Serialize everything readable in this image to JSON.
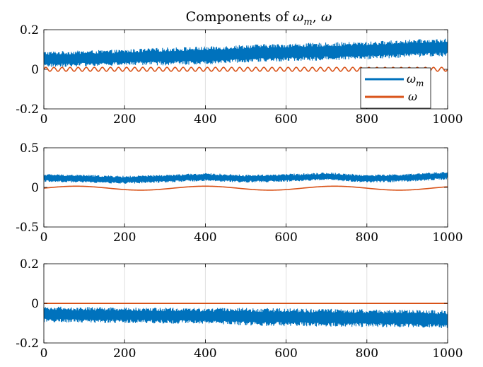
{
  "chart_data": {
    "type": "line",
    "title": "Components of ωm, ω",
    "title_parts": {
      "prefix": "Components of ",
      "omega": "ω",
      "sub_m": "m",
      "sep": ", "
    },
    "colors": {
      "omega_m": "#0072BD",
      "omega": "#D95319"
    },
    "grid": "x-only",
    "legend": {
      "placement": "right-inside (top panel)",
      "entries": [
        {
          "symbol": "ω",
          "subscript": "m",
          "series": "omega_m"
        },
        {
          "symbol": "ω",
          "subscript": "",
          "series": "omega"
        }
      ]
    },
    "panels": [
      {
        "xlim": [
          0,
          1000
        ],
        "ylim": [
          -0.2,
          0.2
        ],
        "xticks": [
          0,
          200,
          400,
          600,
          800,
          1000
        ],
        "xtick_labels": [
          "0",
          "200",
          "400",
          "600",
          "800",
          "1000"
        ],
        "yticks": [
          0.2,
          0,
          -0.2
        ],
        "ytick_labels": [
          "0.2",
          "0",
          "-0.2"
        ],
        "series": [
          {
            "key": "omega_m",
            "name": "ωm",
            "style": "noisy-band",
            "x": [
              0,
              100,
              200,
              300,
              400,
              500,
              600,
              700,
              800,
              900,
              1000
            ],
            "mean": [
              0.05,
              0.055,
              0.06,
              0.065,
              0.07,
              0.08,
              0.085,
              0.09,
              0.095,
              0.105,
              0.11
            ],
            "half_width": [
              0.04,
              0.04,
              0.04,
              0.045,
              0.045,
              0.045,
              0.045,
              0.045,
              0.045,
              0.045,
              0.045
            ]
          },
          {
            "key": "omega",
            "name": "ω",
            "style": "oscillation",
            "x": [
              0,
              1000
            ],
            "mean": [
              0,
              0
            ],
            "amplitude": 0.01,
            "period": 20
          }
        ]
      },
      {
        "xlim": [
          0,
          1000
        ],
        "ylim": [
          -0.5,
          0.5
        ],
        "xticks": [
          0,
          200,
          400,
          600,
          800,
          1000
        ],
        "xtick_labels": [
          "0",
          "200",
          "400",
          "600",
          "800",
          "1000"
        ],
        "yticks": [
          0.5,
          0,
          -0.5
        ],
        "ytick_labels": [
          "0.5",
          "0",
          "-0.5"
        ],
        "series": [
          {
            "key": "omega_m",
            "name": "ωm",
            "style": "noisy-band",
            "x": [
              0,
              100,
              200,
              300,
              400,
              500,
              600,
              700,
              800,
              900,
              1000
            ],
            "mean": [
              0.12,
              0.11,
              0.095,
              0.11,
              0.13,
              0.11,
              0.12,
              0.14,
              0.11,
              0.12,
              0.15
            ],
            "half_width": [
              0.05,
              0.05,
              0.05,
              0.05,
              0.05,
              0.05,
              0.05,
              0.05,
              0.05,
              0.05,
              0.05
            ]
          },
          {
            "key": "omega",
            "name": "ω",
            "style": "smooth-wave",
            "x": [
              0,
              1000
            ],
            "mean": [
              -0.01,
              -0.01
            ],
            "amplitude": 0.025,
            "period": 320
          }
        ]
      },
      {
        "xlim": [
          0,
          1000
        ],
        "ylim": [
          -0.2,
          0.2
        ],
        "xticks": [
          0,
          200,
          400,
          600,
          800,
          1000
        ],
        "xtick_labels": [
          "0",
          "200",
          "400",
          "600",
          "800",
          "1000"
        ],
        "yticks": [
          0.2,
          0,
          -0.2
        ],
        "ytick_labels": [
          "0.2",
          "0",
          "-0.2"
        ],
        "series": [
          {
            "key": "omega",
            "name": "ω",
            "style": "flat",
            "x": [
              0,
              1000
            ],
            "mean": [
              0,
              0
            ]
          },
          {
            "key": "omega_m",
            "name": "ωm",
            "style": "noisy-band",
            "x": [
              0,
              100,
              200,
              300,
              400,
              500,
              600,
              700,
              800,
              900,
              1000
            ],
            "mean": [
              -0.055,
              -0.058,
              -0.06,
              -0.062,
              -0.064,
              -0.067,
              -0.07,
              -0.072,
              -0.075,
              -0.077,
              -0.08
            ],
            "half_width": [
              0.04,
              0.04,
              0.04,
              0.04,
              0.04,
              0.045,
              0.045,
              0.045,
              0.045,
              0.045,
              0.045
            ]
          }
        ]
      }
    ]
  }
}
